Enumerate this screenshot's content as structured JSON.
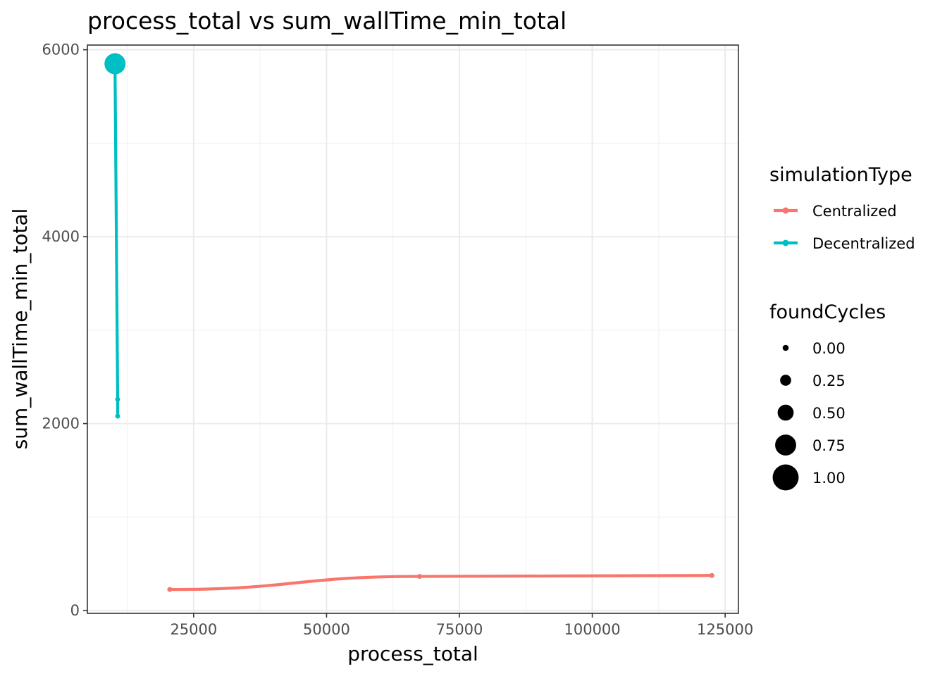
{
  "chart_data": {
    "type": "line",
    "title": "process_total  vs  sum_wallTime_min_total",
    "xlabel": "process_total",
    "ylabel": "sum_wallTime_min_total",
    "xlim": [
      5000,
      127500
    ],
    "ylim": [
      -30,
      6050
    ],
    "x_ticks": [
      25000,
      50000,
      75000,
      100000,
      125000
    ],
    "y_ticks": [
      0,
      2000,
      4000,
      6000
    ],
    "grid": true,
    "legend_position": "right",
    "series": [
      {
        "name": "Centralized",
        "color": "#F8766D",
        "points": [
          {
            "x": 20500,
            "y": 225,
            "foundCycles": 0
          },
          {
            "x": 67500,
            "y": 365,
            "foundCycles": 0
          },
          {
            "x": 122500,
            "y": 375,
            "foundCycles": 0
          }
        ]
      },
      {
        "name": "Decentralized",
        "color": "#00BFC4",
        "points": [
          {
            "x": 10700,
            "y": 2080,
            "foundCycles": 0
          },
          {
            "x": 10700,
            "y": 2260,
            "foundCycles": 0
          },
          {
            "x": 10200,
            "y": 5850,
            "foundCycles": 1
          }
        ]
      }
    ],
    "legends": {
      "color": {
        "title": "simulationType",
        "entries": [
          "Centralized",
          "Decentralized"
        ]
      },
      "size": {
        "title": "foundCycles",
        "entries": [
          "0.00",
          "0.25",
          "0.50",
          "0.75",
          "1.00"
        ],
        "values": [
          0,
          0.25,
          0.5,
          0.75,
          1
        ]
      }
    }
  }
}
